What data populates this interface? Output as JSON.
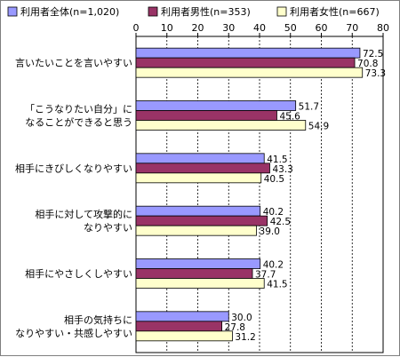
{
  "chart_data": {
    "type": "bar",
    "orientation": "horizontal",
    "categories": [
      [
        "言いたいことを言いやすい"
      ],
      [
        "「こうなりたい自分」に",
        "なることができると思う"
      ],
      [
        "相手にきびしくなりやすい"
      ],
      [
        "相手に対して攻撃的に",
        "なりやすい"
      ],
      [
        "相手にやさしくしやすい"
      ],
      [
        "相手の気持ちに",
        "なりやすい・共感しやすい"
      ]
    ],
    "series": [
      {
        "name": "利用者全体(n=1,020)",
        "color": "#9999ff",
        "values": [
          72.5,
          51.7,
          41.5,
          40.2,
          40.2,
          30.0
        ]
      },
      {
        "name": "利用者男性(n=353)",
        "color": "#993366",
        "values": [
          70.8,
          45.6,
          43.3,
          42.5,
          37.7,
          27.8
        ]
      },
      {
        "name": "利用者女性(n=667)",
        "color": "#ffffcc",
        "values": [
          73.3,
          54.9,
          40.5,
          39.0,
          41.5,
          31.2
        ]
      }
    ],
    "xlim": [
      0,
      80
    ],
    "xticks": [
      0,
      10,
      20,
      30,
      40,
      50,
      60,
      70,
      80
    ],
    "grid": true,
    "legend_position": "top"
  }
}
